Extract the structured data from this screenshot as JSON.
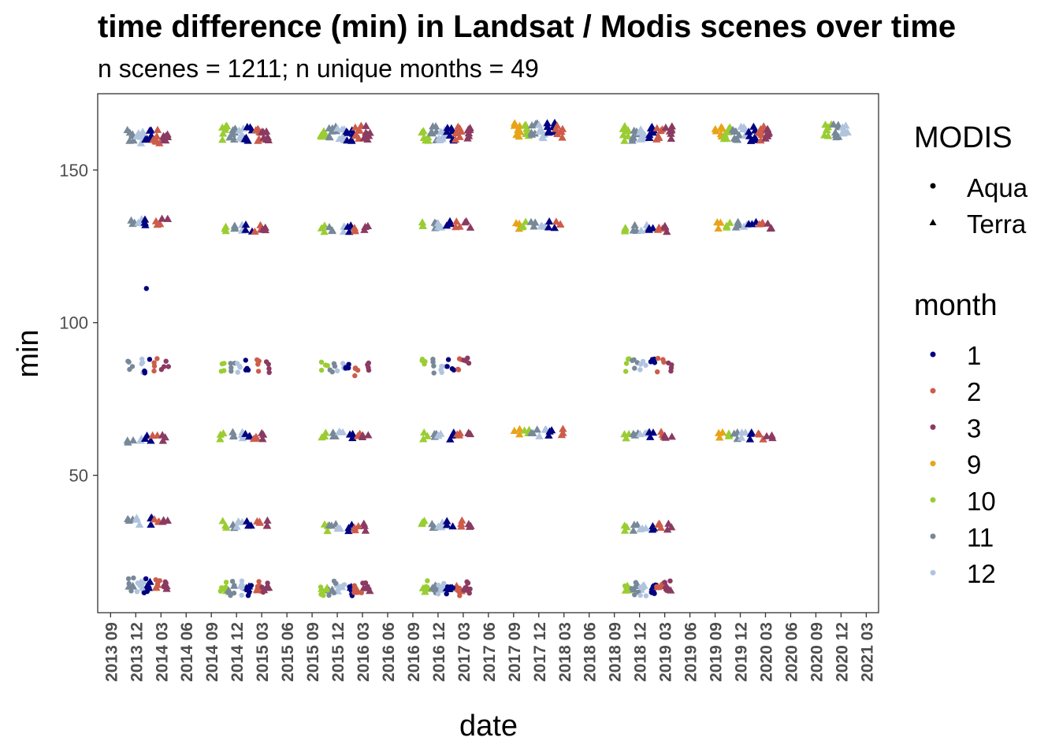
{
  "chart_data": {
    "type": "scatter",
    "title": "time difference (min) in Landsat / Modis scenes over time",
    "subtitle": "n scenes = 1211; n unique months = 49",
    "xlabel": "date",
    "ylabel": "min",
    "xlim": [
      "2013-07-15",
      "2021-04-15"
    ],
    "ylim": [
      5,
      175
    ],
    "y_ticks": [
      50,
      100,
      150
    ],
    "x_ticks": [
      "2013 09",
      "2013 12",
      "2014 03",
      "2014 06",
      "2014 09",
      "2014 12",
      "2015 03",
      "2015 06",
      "2015 09",
      "2015 12",
      "2016 03",
      "2016 06",
      "2016 09",
      "2016 12",
      "2017 03",
      "2017 06",
      "2017 09",
      "2017 12",
      "2018 03",
      "2018 06",
      "2018 09",
      "2018 12",
      "2019 03",
      "2019 06",
      "2019 09",
      "2019 12",
      "2020 03",
      "2020 06",
      "2020 09",
      "2020 12",
      "2021 03"
    ],
    "grid": false,
    "legends": [
      {
        "title": "MODIS",
        "encoding": "shape",
        "entries": [
          {
            "label": "Aqua",
            "shape": "circle"
          },
          {
            "label": "Terra",
            "shape": "triangle"
          }
        ]
      },
      {
        "title": "month",
        "encoding": "color",
        "entries": [
          {
            "label": "1",
            "color": "#000080"
          },
          {
            "label": "2",
            "color": "#cd5c4a"
          },
          {
            "label": "3",
            "color": "#8b3a62"
          },
          {
            "label": "9",
            "color": "#e8a317"
          },
          {
            "label": "10",
            "color": "#9acd32"
          },
          {
            "label": "11",
            "color": "#778899"
          },
          {
            "label": "12",
            "color": "#b0c4de"
          }
        ]
      }
    ],
    "legend_position": "right",
    "series_note_clusters": [
      {
        "season_start": 2013,
        "terra_levels": [
          161,
          133,
          62,
          35,
          14
        ],
        "aqua_levels": [
          111,
          86,
          14
        ]
      },
      {
        "season_start": 2014,
        "terra_levels": [
          162,
          131,
          63,
          34,
          13
        ],
        "aqua_levels": [
          86,
          13
        ]
      },
      {
        "season_start": 2015,
        "terra_levels": [
          162,
          131,
          63,
          33,
          13
        ],
        "aqua_levels": [
          85,
          13
        ]
      },
      {
        "season_start": 2016,
        "terra_levels": [
          162,
          132,
          63,
          34,
          13
        ],
        "aqua_levels": [
          86,
          13
        ]
      },
      {
        "season_start": 2017,
        "terra_levels": [
          163,
          132,
          64
        ]
      },
      {
        "season_start": 2018,
        "terra_levels": [
          162,
          131,
          63,
          33,
          13
        ],
        "aqua_levels": [
          86,
          13
        ]
      },
      {
        "season_start": 2019,
        "terra_levels": [
          162,
          132,
          63
        ]
      },
      {
        "season_start": 2020,
        "terra_levels": [
          163
        ]
      }
    ]
  }
}
